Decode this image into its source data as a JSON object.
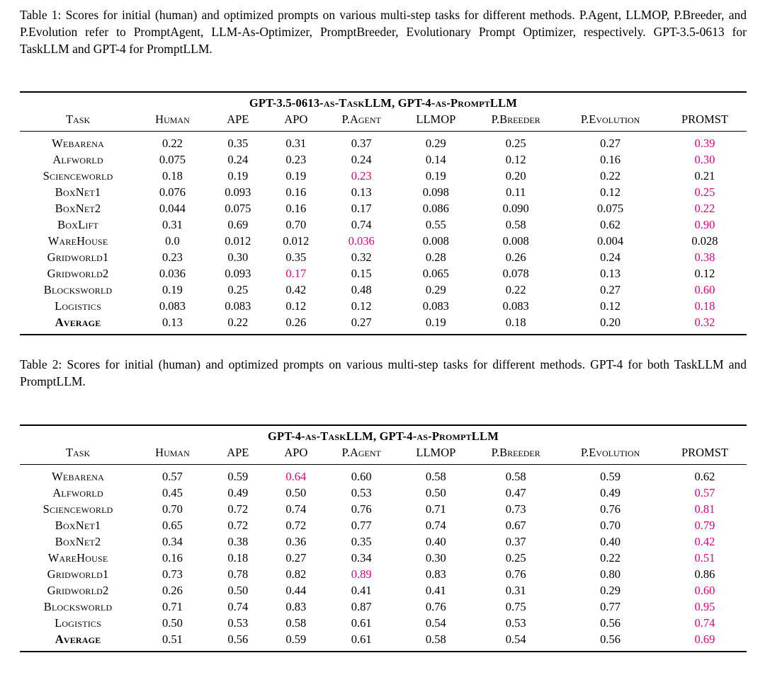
{
  "colors": {
    "background": "#ffffff",
    "text": "#000000",
    "best_value": "#e00080"
  },
  "tables": [
    {
      "caption": "Table 1: Scores for initial (human) and optimized prompts on various multi-step tasks for different methods. P.Agent, LLMOP, P.Breeder, and P.Evolution refer to PromptAgent, LLM-As-Optimizer, PromptBreeder, Evolutionary Prompt Optimizer, respectively. GPT-3.5-0613 for TaskLLM and GPT-4 for PromptLLM.",
      "span_header": "GPT-3.5-0613-as-TaskLLM, GPT-4-as-PromptLLM",
      "columns": [
        "Task",
        "Human",
        "APE",
        "APO",
        "P.Agent",
        "LLMOP",
        "P.Breeder",
        "P.Evolution",
        "PROMST"
      ],
      "rows": [
        {
          "task": "Webarena",
          "bold": false,
          "values": [
            "0.22",
            "0.35",
            "0.31",
            "0.37",
            "0.29",
            "0.25",
            "0.27",
            "0.39"
          ],
          "highlight": [
            7
          ]
        },
        {
          "task": "Alfworld",
          "bold": false,
          "values": [
            "0.075",
            "0.24",
            "0.23",
            "0.24",
            "0.14",
            "0.12",
            "0.16",
            "0.30"
          ],
          "highlight": [
            7
          ]
        },
        {
          "task": "Scienceworld",
          "bold": false,
          "values": [
            "0.18",
            "0.19",
            "0.19",
            "0.23",
            "0.19",
            "0.20",
            "0.22",
            "0.21"
          ],
          "highlight": [
            3
          ]
        },
        {
          "task": "BoxNet1",
          "bold": false,
          "values": [
            "0.076",
            "0.093",
            "0.16",
            "0.13",
            "0.098",
            "0.11",
            "0.12",
            "0.25"
          ],
          "highlight": [
            7
          ]
        },
        {
          "task": "BoxNet2",
          "bold": false,
          "values": [
            "0.044",
            "0.075",
            "0.16",
            "0.17",
            "0.086",
            "0.090",
            "0.075",
            "0.22"
          ],
          "highlight": [
            7
          ]
        },
        {
          "task": "BoxLift",
          "bold": false,
          "values": [
            "0.31",
            "0.69",
            "0.70",
            "0.74",
            "0.55",
            "0.58",
            "0.62",
            "0.90"
          ],
          "highlight": [
            7
          ]
        },
        {
          "task": "WareHouse",
          "bold": false,
          "values": [
            "0.0",
            "0.012",
            "0.012",
            "0.036",
            "0.008",
            "0.008",
            "0.004",
            "0.028"
          ],
          "highlight": [
            3
          ]
        },
        {
          "task": "Gridworld1",
          "bold": false,
          "values": [
            "0.23",
            "0.30",
            "0.35",
            "0.32",
            "0.28",
            "0.26",
            "0.24",
            "0.38"
          ],
          "highlight": [
            7
          ]
        },
        {
          "task": "Gridworld2",
          "bold": false,
          "values": [
            "0.036",
            "0.093",
            "0.17",
            "0.15",
            "0.065",
            "0.078",
            "0.13",
            "0.12"
          ],
          "highlight": [
            2
          ]
        },
        {
          "task": "Blocksworld",
          "bold": false,
          "values": [
            "0.19",
            "0.25",
            "0.42",
            "0.48",
            "0.29",
            "0.22",
            "0.27",
            "0.60"
          ],
          "highlight": [
            7
          ]
        },
        {
          "task": "Logistics",
          "bold": false,
          "values": [
            "0.083",
            "0.083",
            "0.12",
            "0.12",
            "0.083",
            "0.083",
            "0.12",
            "0.18"
          ],
          "highlight": [
            7
          ]
        },
        {
          "task": "Average",
          "bold": true,
          "values": [
            "0.13",
            "0.22",
            "0.26",
            "0.27",
            "0.19",
            "0.18",
            "0.20",
            "0.32"
          ],
          "highlight": [
            7
          ]
        }
      ]
    },
    {
      "caption": "Table 2: Scores for initial (human) and optimized prompts on various multi-step tasks for different methods. GPT-4 for both TaskLLM and PromptLLM.",
      "span_header": "GPT-4-as-TaskLLM, GPT-4-as-PromptLLM",
      "columns": [
        "Task",
        "Human",
        "APE",
        "APO",
        "P.Agent",
        "LLMOP",
        "P.Breeder",
        "P.Evolution",
        "PROMST"
      ],
      "rows": [
        {
          "task": "Webarena",
          "bold": false,
          "values": [
            "0.57",
            "0.59",
            "0.64",
            "0.60",
            "0.58",
            "0.58",
            "0.59",
            "0.62"
          ],
          "highlight": [
            2
          ]
        },
        {
          "task": "Alfworld",
          "bold": false,
          "values": [
            "0.45",
            "0.49",
            "0.50",
            "0.53",
            "0.50",
            "0.47",
            "0.49",
            "0.57"
          ],
          "highlight": [
            7
          ]
        },
        {
          "task": "Scienceworld",
          "bold": false,
          "values": [
            "0.70",
            "0.72",
            "0.74",
            "0.76",
            "0.71",
            "0.73",
            "0.76",
            "0.81"
          ],
          "highlight": [
            7
          ]
        },
        {
          "task": "BoxNet1",
          "bold": false,
          "values": [
            "0.65",
            "0.72",
            "0.72",
            "0.77",
            "0.74",
            "0.67",
            "0.70",
            "0.79"
          ],
          "highlight": [
            7
          ]
        },
        {
          "task": "BoxNet2",
          "bold": false,
          "values": [
            "0.34",
            "0.38",
            "0.36",
            "0.35",
            "0.40",
            "0.37",
            "0.40",
            "0.42"
          ],
          "highlight": [
            7
          ]
        },
        {
          "task": "WareHouse",
          "bold": false,
          "values": [
            "0.16",
            "0.18",
            "0.27",
            "0.34",
            "0.30",
            "0.25",
            "0.22",
            "0.51"
          ],
          "highlight": [
            7
          ]
        },
        {
          "task": "Gridworld1",
          "bold": false,
          "values": [
            "0.73",
            "0.78",
            "0.82",
            "0.89",
            "0.83",
            "0.76",
            "0.80",
            "0.86"
          ],
          "highlight": [
            3
          ]
        },
        {
          "task": "Gridworld2",
          "bold": false,
          "values": [
            "0.26",
            "0.50",
            "0.44",
            "0.41",
            "0.41",
            "0.31",
            "0.29",
            "0.60"
          ],
          "highlight": [
            7
          ]
        },
        {
          "task": "Blocksworld",
          "bold": false,
          "values": [
            "0.71",
            "0.74",
            "0.83",
            "0.87",
            "0.76",
            "0.75",
            "0.77",
            "0.95"
          ],
          "highlight": [
            7
          ]
        },
        {
          "task": "Logistics",
          "bold": false,
          "values": [
            "0.50",
            "0.53",
            "0.58",
            "0.61",
            "0.54",
            "0.53",
            "0.56",
            "0.74"
          ],
          "highlight": [
            7
          ]
        },
        {
          "task": "Average",
          "bold": true,
          "values": [
            "0.51",
            "0.56",
            "0.59",
            "0.61",
            "0.58",
            "0.54",
            "0.56",
            "0.69"
          ],
          "highlight": [
            7
          ]
        }
      ]
    }
  ]
}
